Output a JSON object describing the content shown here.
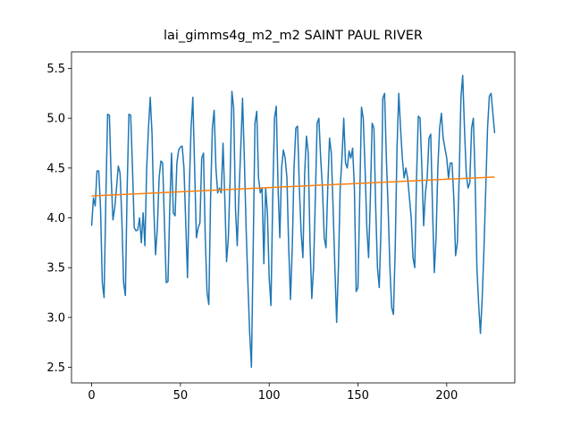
{
  "chart_data": {
    "type": "line",
    "title": "lai_gimms4g_m2_m2 SAINT PAUL RIVER",
    "x": [
      0,
      1,
      2,
      3,
      4,
      5,
      6,
      7,
      8,
      9,
      10,
      11,
      12,
      13,
      14,
      15,
      16,
      17,
      18,
      19,
      20,
      21,
      22,
      23,
      24,
      25,
      26,
      27,
      28,
      29,
      30,
      31,
      32,
      33,
      34,
      35,
      36,
      37,
      38,
      39,
      40,
      41,
      42,
      43,
      44,
      45,
      46,
      47,
      48,
      49,
      50,
      51,
      52,
      53,
      54,
      55,
      56,
      57,
      58,
      59,
      60,
      61,
      62,
      63,
      64,
      65,
      66,
      67,
      68,
      69,
      70,
      71,
      72,
      73,
      74,
      75,
      76,
      77,
      78,
      79,
      80,
      81,
      82,
      83,
      84,
      85,
      86,
      87,
      88,
      89,
      90,
      91,
      92,
      93,
      94,
      95,
      96,
      97,
      98,
      99,
      100,
      101,
      102,
      103,
      104,
      105,
      106,
      107,
      108,
      109,
      110,
      111,
      112,
      113,
      114,
      115,
      116,
      117,
      118,
      119,
      120,
      121,
      122,
      123,
      124,
      125,
      126,
      127,
      128,
      129,
      130,
      131,
      132,
      133,
      134,
      135,
      136,
      137,
      138,
      139,
      140,
      141,
      142,
      143,
      144,
      145,
      146,
      147,
      148,
      149,
      150,
      151,
      152,
      153,
      154,
      155,
      156,
      157,
      158,
      159,
      160,
      161,
      162,
      163,
      164,
      165,
      166,
      167,
      168,
      169,
      170,
      171,
      172,
      173,
      174,
      175,
      176,
      177,
      178,
      179,
      180,
      181,
      182,
      183,
      184,
      185,
      186,
      187,
      188,
      189,
      190,
      191,
      192,
      193,
      194,
      195,
      196,
      197,
      198,
      199,
      200,
      201,
      202,
      203,
      204,
      205,
      206,
      207,
      208,
      209,
      210,
      211,
      212,
      213,
      214,
      215,
      216,
      217,
      218,
      219,
      220,
      221,
      222,
      223,
      224,
      225,
      226,
      227
    ],
    "series": [
      {
        "color": "#1f77b4",
        "values": [
          3.92,
          4.2,
          4.12,
          4.47,
          4.47,
          4.1,
          3.35,
          3.2,
          4.2,
          5.04,
          5.03,
          4.4,
          3.98,
          4.1,
          4.3,
          4.52,
          4.45,
          4.0,
          3.35,
          3.22,
          4.3,
          5.04,
          5.03,
          4.5,
          3.9,
          3.87,
          3.88,
          4.0,
          3.75,
          4.05,
          3.72,
          4.5,
          4.9,
          5.21,
          4.85,
          4.1,
          3.63,
          3.9,
          4.4,
          4.57,
          4.55,
          3.95,
          3.35,
          3.36,
          4.1,
          4.65,
          4.05,
          4.02,
          4.55,
          4.68,
          4.71,
          4.72,
          4.5,
          3.95,
          3.4,
          4.3,
          4.9,
          5.21,
          4.5,
          3.8,
          3.9,
          3.95,
          4.6,
          4.65,
          3.8,
          3.25,
          3.13,
          4.2,
          4.9,
          5.08,
          4.5,
          4.25,
          4.3,
          4.25,
          4.75,
          4.2,
          3.56,
          3.8,
          4.4,
          5.27,
          5.1,
          4.1,
          3.72,
          4.25,
          4.7,
          5.2,
          4.6,
          3.9,
          3.35,
          2.85,
          2.5,
          3.7,
          4.95,
          5.07,
          4.4,
          4.25,
          4.3,
          3.54,
          4.3,
          4.05,
          3.4,
          3.12,
          4.2,
          5.0,
          5.12,
          4.3,
          3.8,
          4.5,
          4.68,
          4.6,
          4.4,
          3.7,
          3.18,
          3.7,
          4.5,
          4.9,
          4.92,
          4.3,
          3.85,
          3.6,
          4.45,
          4.82,
          4.65,
          3.75,
          3.19,
          3.5,
          4.2,
          4.95,
          5.0,
          4.6,
          4.3,
          3.8,
          3.7,
          4.3,
          4.8,
          4.65,
          4.1,
          3.5,
          2.95,
          3.5,
          4.3,
          4.6,
          5.0,
          4.55,
          4.5,
          4.67,
          4.6,
          4.7,
          4.3,
          3.26,
          3.3,
          4.2,
          5.11,
          5.0,
          4.5,
          3.9,
          3.6,
          4.2,
          4.95,
          4.9,
          4.1,
          3.5,
          3.3,
          3.9,
          5.2,
          5.25,
          4.6,
          4.1,
          3.5,
          3.1,
          3.03,
          3.7,
          4.7,
          5.25,
          4.9,
          4.6,
          4.4,
          4.5,
          4.4,
          4.2,
          4.0,
          3.6,
          3.5,
          4.4,
          5.02,
          5.0,
          4.5,
          3.92,
          4.25,
          4.4,
          4.8,
          4.84,
          4.1,
          3.45,
          3.8,
          4.5,
          4.9,
          5.05,
          4.8,
          4.7,
          4.6,
          4.4,
          4.55,
          4.55,
          4.2,
          3.62,
          3.75,
          4.4,
          5.2,
          5.43,
          4.9,
          4.45,
          4.3,
          4.35,
          4.9,
          5.0,
          4.4,
          3.5,
          3.13,
          2.84,
          3.2,
          3.7,
          4.3,
          4.9,
          5.22,
          5.25,
          5.05,
          4.85
        ]
      },
      {
        "color": "#ff7f0e",
        "x": [
          0,
          227
        ],
        "values": [
          4.22,
          4.41
        ]
      }
    ],
    "xlim": [
      -11.35,
      238.35
    ],
    "ylim": [
      2.343,
      5.666
    ],
    "xticks": [
      0,
      50,
      100,
      150,
      200
    ],
    "yticks": [
      {
        "value": 2.5,
        "label": "2.5"
      },
      {
        "value": 3.0,
        "label": "3.0"
      },
      {
        "value": 3.5,
        "label": "3.5"
      },
      {
        "value": 4.0,
        "label": "4.0"
      },
      {
        "value": 4.5,
        "label": "4.5"
      },
      {
        "value": 5.0,
        "label": "5.0"
      },
      {
        "value": 5.5,
        "label": "5.5"
      }
    ]
  }
}
